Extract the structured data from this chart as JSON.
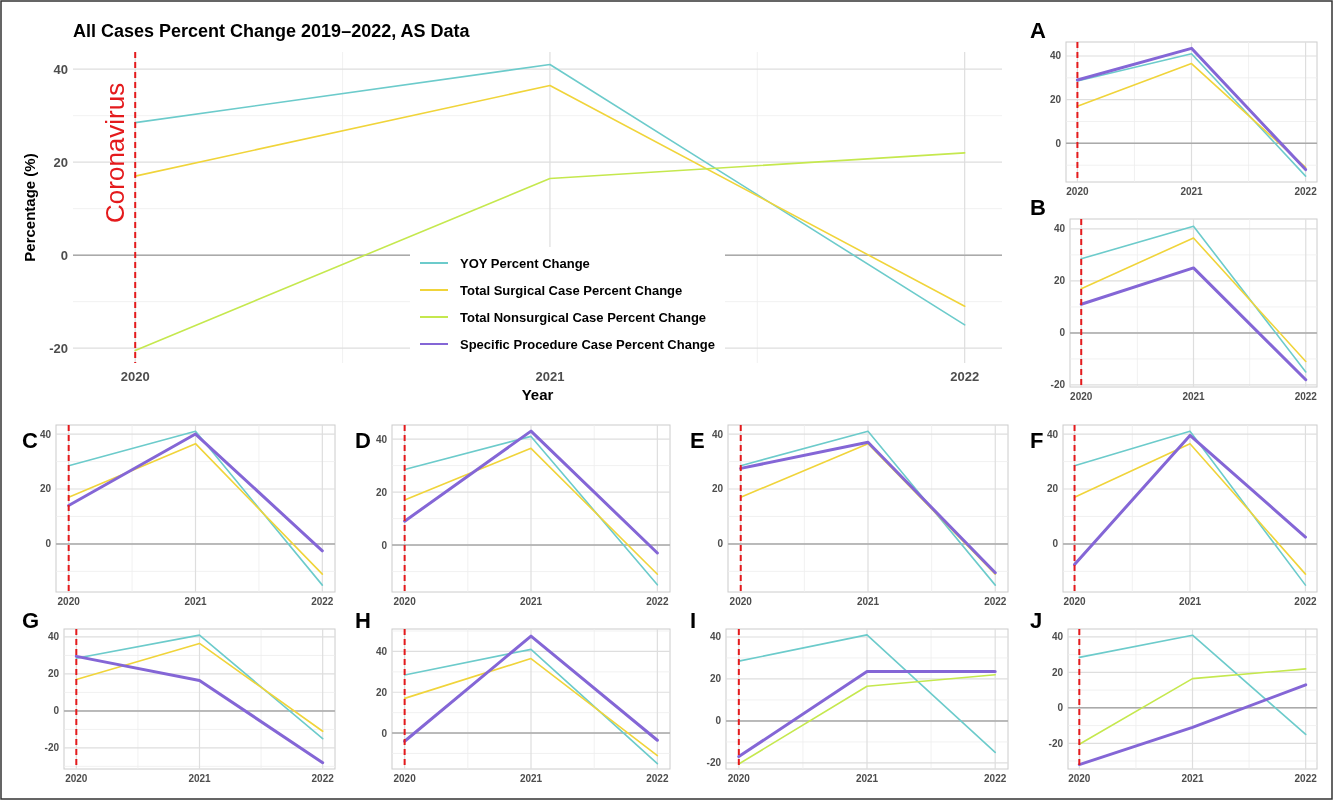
{
  "chart_data": [
    {
      "type": "line",
      "title": "All Cases Percent Change 2019–2022, AS Data",
      "xlabel": "Year",
      "ylabel": "Percentage (%)",
      "x": [
        2020,
        2021,
        2022
      ],
      "xlim": [
        2019.85,
        2022.09
      ],
      "xticks": [
        2020,
        2021,
        2022
      ],
      "ylim": [
        -23.2,
        43.7
      ],
      "yticks": [
        -20,
        0,
        20,
        40
      ],
      "grid": true,
      "legend": "bottom",
      "line_style": "solid",
      "marker": "none",
      "ref_lines": [
        {
          "axis": "x",
          "value": 2020,
          "label": "Coronavirus",
          "color": "#e41a1c",
          "line_style": "dashed"
        },
        {
          "axis": "y",
          "value": 0,
          "label": null,
          "color": "#aaaaaa",
          "line_style": "solid"
        }
      ],
      "series": [
        {
          "name": "YOY Percent Change",
          "color": "#6ccbcb",
          "values": [
            28.5,
            41,
            -15
          ]
        },
        {
          "name": "Total Surgical Case Percent Change",
          "color": "#f0d43a",
          "values": [
            17,
            36.5,
            -11
          ]
        },
        {
          "name": "Total Nonsurgical Case Percent Change",
          "color": "#c5e84e",
          "values": [
            -20.5,
            16.5,
            22
          ]
        },
        {
          "name": "Specific Procedure Case Percent Change",
          "color": "#8466d6",
          "values": [
            null,
            null,
            null
          ]
        }
      ]
    },
    {
      "type": "line",
      "title": "A",
      "x": [
        2020,
        2021,
        2022
      ],
      "xlim": [
        2019.9,
        2022.1
      ],
      "xticks": [
        2020,
        2021,
        2022
      ],
      "ylim": [
        -17.7,
        46.4
      ],
      "yticks": [
        0,
        20,
        40
      ],
      "grid": true,
      "ref_lines": [
        {
          "axis": "x",
          "value": 2020,
          "color": "#e41a1c",
          "line_style": "dashed"
        },
        {
          "axis": "y",
          "value": 0,
          "color": "#aaaaaa",
          "line_style": "solid"
        }
      ],
      "series": [
        {
          "color": "#6ccbcb",
          "values": [
            28.5,
            41,
            -15
          ]
        },
        {
          "color": "#f0d43a",
          "values": [
            17,
            36.5,
            -11
          ]
        },
        {
          "color": "#8466d6",
          "values": [
            29,
            43.5,
            -12
          ]
        }
      ]
    },
    {
      "type": "line",
      "title": "B",
      "x": [
        2020,
        2021,
        2022
      ],
      "xlim": [
        2019.9,
        2022.1
      ],
      "xticks": [
        2020,
        2021,
        2022
      ],
      "ylim": [
        -20.8,
        43.8
      ],
      "yticks": [
        -20,
        0,
        20,
        40
      ],
      "grid": true,
      "ref_lines": [
        {
          "axis": "x",
          "value": 2020,
          "color": "#e41a1c",
          "line_style": "dashed"
        },
        {
          "axis": "y",
          "value": 0,
          "color": "#aaaaaa",
          "line_style": "solid"
        }
      ],
      "series": [
        {
          "color": "#6ccbcb",
          "values": [
            28.5,
            41,
            -15
          ]
        },
        {
          "color": "#f0d43a",
          "values": [
            17,
            36.5,
            -11
          ]
        },
        {
          "color": "#8466d6",
          "values": [
            11,
            25,
            -18
          ]
        }
      ]
    },
    {
      "type": "line",
      "title": "C",
      "x": [
        2020,
        2021,
        2022
      ],
      "xlim": [
        2019.9,
        2022.1
      ],
      "xticks": [
        2020,
        2021,
        2022
      ],
      "ylim": [
        -17.5,
        43.3
      ],
      "yticks": [
        0,
        20,
        40
      ],
      "grid": true,
      "ref_lines": [
        {
          "axis": "x",
          "value": 2020,
          "color": "#e41a1c",
          "line_style": "dashed"
        },
        {
          "axis": "y",
          "value": 0,
          "color": "#aaaaaa",
          "line_style": "solid"
        }
      ],
      "series": [
        {
          "color": "#6ccbcb",
          "values": [
            28.5,
            41,
            -15
          ]
        },
        {
          "color": "#f0d43a",
          "values": [
            17,
            36.5,
            -11
          ]
        },
        {
          "color": "#8466d6",
          "values": [
            14,
            40,
            -2.5
          ]
        }
      ]
    },
    {
      "type": "line",
      "title": "D",
      "x": [
        2020,
        2021,
        2022
      ],
      "xlim": [
        2019.9,
        2022.1
      ],
      "xticks": [
        2020,
        2021,
        2022
      ],
      "ylim": [
        -17.7,
        45.3
      ],
      "yticks": [
        0,
        20,
        40
      ],
      "grid": true,
      "ref_lines": [
        {
          "axis": "x",
          "value": 2020,
          "color": "#e41a1c",
          "line_style": "dashed"
        },
        {
          "axis": "y",
          "value": 0,
          "color": "#aaaaaa",
          "line_style": "solid"
        }
      ],
      "series": [
        {
          "color": "#6ccbcb",
          "values": [
            28.5,
            41,
            -15
          ]
        },
        {
          "color": "#f0d43a",
          "values": [
            17,
            36.5,
            -11
          ]
        },
        {
          "color": "#8466d6",
          "values": [
            9,
            43,
            -3
          ]
        }
      ]
    },
    {
      "type": "line",
      "title": "E",
      "x": [
        2020,
        2021,
        2022
      ],
      "xlim": [
        2019.9,
        2022.1
      ],
      "xticks": [
        2020,
        2021,
        2022
      ],
      "ylim": [
        -17.5,
        43.3
      ],
      "yticks": [
        0,
        20,
        40
      ],
      "grid": true,
      "ref_lines": [
        {
          "axis": "x",
          "value": 2020,
          "color": "#e41a1c",
          "line_style": "dashed"
        },
        {
          "axis": "y",
          "value": 0,
          "color": "#aaaaaa",
          "line_style": "solid"
        }
      ],
      "series": [
        {
          "color": "#6ccbcb",
          "values": [
            28.5,
            41,
            -15
          ]
        },
        {
          "color": "#f0d43a",
          "values": [
            17,
            36.5,
            -11
          ]
        },
        {
          "color": "#8466d6",
          "values": [
            27.5,
            37,
            -10.5
          ]
        }
      ]
    },
    {
      "type": "line",
      "title": "F",
      "x": [
        2020,
        2021,
        2022
      ],
      "xlim": [
        2019.9,
        2022.1
      ],
      "xticks": [
        2020,
        2021,
        2022
      ],
      "ylim": [
        -17.5,
        43.3
      ],
      "yticks": [
        0,
        20,
        40
      ],
      "grid": true,
      "ref_lines": [
        {
          "axis": "x",
          "value": 2020,
          "color": "#e41a1c",
          "line_style": "dashed"
        },
        {
          "axis": "y",
          "value": 0,
          "color": "#aaaaaa",
          "line_style": "solid"
        }
      ],
      "series": [
        {
          "color": "#6ccbcb",
          "values": [
            28.5,
            41,
            -15
          ]
        },
        {
          "color": "#f0d43a",
          "values": [
            17,
            36.5,
            -11
          ]
        },
        {
          "color": "#8466d6",
          "values": [
            -7.5,
            39.5,
            2.5
          ]
        }
      ]
    },
    {
      "type": "line",
      "title": "G",
      "x": [
        2020,
        2021,
        2022
      ],
      "xlim": [
        2019.9,
        2022.1
      ],
      "xticks": [
        2020,
        2021,
        2022
      ],
      "ylim": [
        -31.4,
        44.3
      ],
      "yticks": [
        -20,
        0,
        20,
        40
      ],
      "grid": true,
      "ref_lines": [
        {
          "axis": "x",
          "value": 2020,
          "color": "#e41a1c",
          "line_style": "dashed"
        },
        {
          "axis": "y",
          "value": 0,
          "color": "#aaaaaa",
          "line_style": "solid"
        }
      ],
      "series": [
        {
          "color": "#6ccbcb",
          "values": [
            28.5,
            41,
            -15
          ]
        },
        {
          "color": "#f0d43a",
          "values": [
            17,
            36.5,
            -11
          ]
        },
        {
          "color": "#8466d6",
          "values": [
            29.5,
            16.5,
            -28
          ]
        }
      ]
    },
    {
      "type": "line",
      "title": "H",
      "x": [
        2020,
        2021,
        2022
      ],
      "xlim": [
        2019.9,
        2022.1
      ],
      "xticks": [
        2020,
        2021,
        2022
      ],
      "ylim": [
        -17.6,
        51
      ],
      "yticks": [
        0,
        20,
        40
      ],
      "grid": true,
      "ref_lines": [
        {
          "axis": "x",
          "value": 2020,
          "color": "#e41a1c",
          "line_style": "dashed"
        },
        {
          "axis": "y",
          "value": 0,
          "color": "#aaaaaa",
          "line_style": "solid"
        }
      ],
      "series": [
        {
          "color": "#6ccbcb",
          "values": [
            28.5,
            41,
            -15
          ]
        },
        {
          "color": "#f0d43a",
          "values": [
            17,
            36.5,
            -11
          ]
        },
        {
          "color": "#8466d6",
          "values": [
            -4,
            47.5,
            -3.5
          ]
        }
      ]
    },
    {
      "type": "line",
      "title": "I",
      "x": [
        2020,
        2021,
        2022
      ],
      "xlim": [
        2019.9,
        2022.1
      ],
      "xticks": [
        2020,
        2021,
        2022
      ],
      "ylim": [
        -22.9,
        43.8
      ],
      "yticks": [
        -20,
        0,
        20,
        40
      ],
      "grid": true,
      "ref_lines": [
        {
          "axis": "x",
          "value": 2020,
          "color": "#e41a1c",
          "line_style": "dashed"
        },
        {
          "axis": "y",
          "value": 0,
          "color": "#aaaaaa",
          "line_style": "solid"
        }
      ],
      "series": [
        {
          "color": "#6ccbcb",
          "values": [
            28.5,
            41,
            -15
          ]
        },
        {
          "color": "#c5e84e",
          "values": [
            -20.5,
            16.5,
            22
          ]
        },
        {
          "color": "#8466d6",
          "values": [
            -17,
            23.5,
            23.5
          ]
        }
      ]
    },
    {
      "type": "line",
      "title": "J",
      "x": [
        2020,
        2021,
        2022
      ],
      "xlim": [
        2019.9,
        2022.1
      ],
      "xticks": [
        2020,
        2021,
        2022
      ],
      "ylim": [
        -34.5,
        44.5
      ],
      "yticks": [
        -20,
        0,
        20,
        40
      ],
      "grid": true,
      "ref_lines": [
        {
          "axis": "x",
          "value": 2020,
          "color": "#e41a1c",
          "line_style": "dashed"
        },
        {
          "axis": "y",
          "value": 0,
          "color": "#aaaaaa",
          "line_style": "solid"
        }
      ],
      "series": [
        {
          "color": "#6ccbcb",
          "values": [
            28.5,
            41,
            -15
          ]
        },
        {
          "color": "#c5e84e",
          "values": [
            -20.5,
            16.5,
            22
          ]
        },
        {
          "color": "#8466d6",
          "values": [
            -32,
            -11,
            13
          ]
        }
      ]
    }
  ]
}
